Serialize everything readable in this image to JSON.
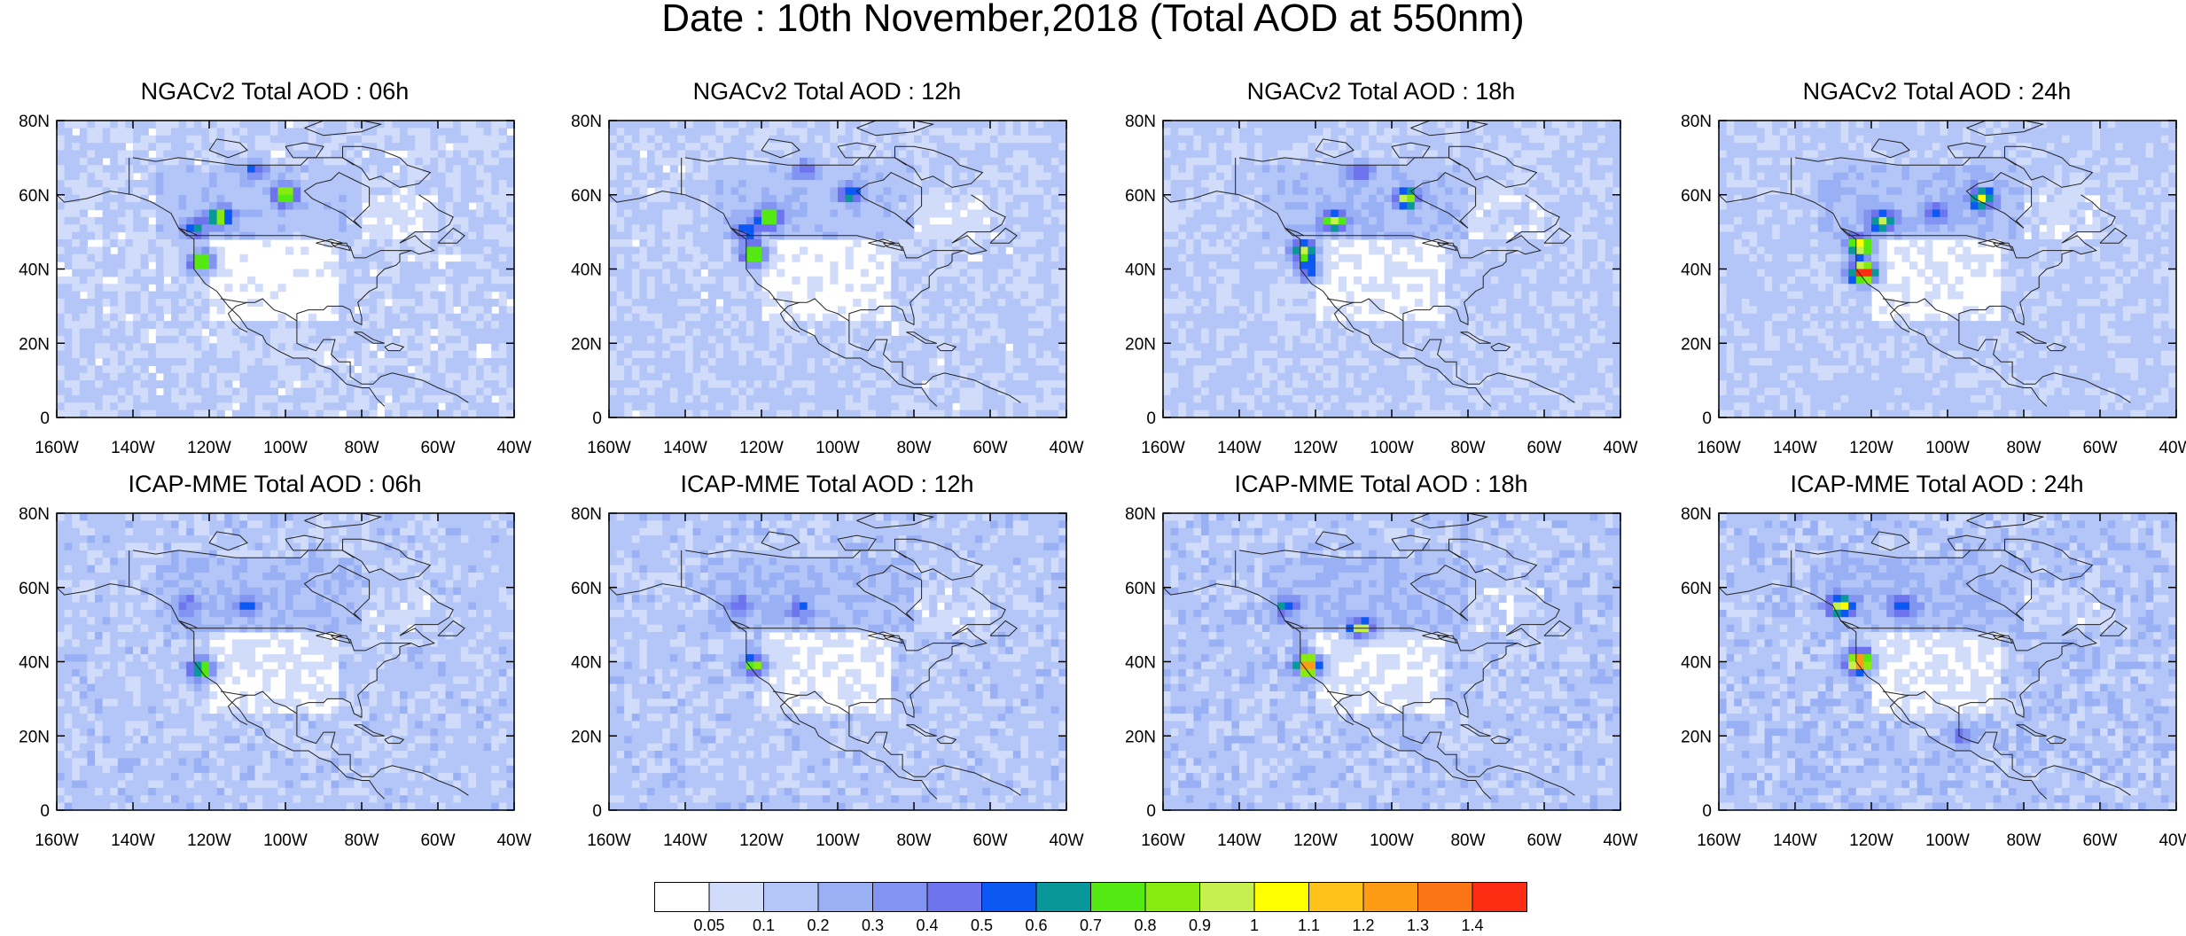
{
  "title": "Date : 10th November,2018 (Total AOD at 550nm)",
  "panels": [
    {
      "title": "NGACv2 Total AOD : 06h",
      "model": "NGACv2",
      "hour": "06h",
      "seed": 11,
      "base": 0.13,
      "hotspots": [
        {
          "lon": -100,
          "lat": 60,
          "v": 0.85
        },
        {
          "lon": -117,
          "lat": 54,
          "v": 0.8
        },
        {
          "lon": -122,
          "lat": 42,
          "v": 0.8
        },
        {
          "lon": -124,
          "lat": 51,
          "v": 0.45
        },
        {
          "lon": -108,
          "lat": 67,
          "v": 0.35
        }
      ]
    },
    {
      "title": "NGACv2 Total AOD : 12h",
      "model": "NGACv2",
      "hour": "12h",
      "seed": 23,
      "base": 0.14,
      "hotspots": [
        {
          "lon": -122,
          "lat": 44,
          "v": 0.85
        },
        {
          "lon": -118,
          "lat": 54,
          "v": 0.8
        },
        {
          "lon": -97,
          "lat": 60,
          "v": 0.5
        },
        {
          "lon": -124,
          "lat": 50,
          "v": 0.5
        },
        {
          "lon": -108,
          "lat": 67,
          "v": 0.35
        }
      ]
    },
    {
      "title": "NGACv2 Total AOD : 18h",
      "model": "NGACv2",
      "hour": "18h",
      "seed": 37,
      "base": 0.15,
      "hotspots": [
        {
          "lon": -123,
          "lat": 45,
          "v": 0.85
        },
        {
          "lon": -96,
          "lat": 59,
          "v": 0.8
        },
        {
          "lon": -115,
          "lat": 53,
          "v": 0.75
        },
        {
          "lon": -122,
          "lat": 40,
          "v": 0.5
        },
        {
          "lon": -108,
          "lat": 66,
          "v": 0.4
        }
      ]
    },
    {
      "title": "NGACv2 Total AOD : 24h",
      "model": "NGACv2",
      "hour": "24h",
      "seed": 41,
      "base": 0.16,
      "hotspots": [
        {
          "lon": -122,
          "lat": 39,
          "v": 1.45
        },
        {
          "lon": -123,
          "lat": 46,
          "v": 1.0
        },
        {
          "lon": -91,
          "lat": 59,
          "v": 0.85
        },
        {
          "lon": -117,
          "lat": 53,
          "v": 0.8
        },
        {
          "lon": -103,
          "lat": 55,
          "v": 0.4
        }
      ]
    },
    {
      "title": "ICAP-MME Total AOD : 06h",
      "model": "ICAP-MME",
      "hour": "06h",
      "seed": 53,
      "base": 0.17,
      "hotspots": [
        {
          "lon": -110,
          "lat": 55,
          "v": 0.35
        },
        {
          "lon": -122,
          "lat": 38,
          "v": 0.75
        },
        {
          "lon": -126,
          "lat": 55,
          "v": 0.3
        }
      ]
    },
    {
      "title": "ICAP-MME Total AOD : 12h",
      "model": "ICAP-MME",
      "hour": "12h",
      "seed": 61,
      "base": 0.17,
      "hotspots": [
        {
          "lon": -122,
          "lat": 39,
          "v": 0.75
        },
        {
          "lon": -110,
          "lat": 54,
          "v": 0.35
        },
        {
          "lon": -126,
          "lat": 55,
          "v": 0.3
        }
      ]
    },
    {
      "title": "ICAP-MME Total AOD : 18h",
      "model": "ICAP-MME",
      "hour": "18h",
      "seed": 71,
      "base": 0.18,
      "hotspots": [
        {
          "lon": -122,
          "lat": 39,
          "v": 1.3
        },
        {
          "lon": -108,
          "lat": 49,
          "v": 0.75
        },
        {
          "lon": -128,
          "lat": 55,
          "v": 0.4
        }
      ]
    },
    {
      "title": "ICAP-MME Total AOD : 24h",
      "model": "ICAP-MME",
      "hour": "24h",
      "seed": 83,
      "base": 0.19,
      "hotspots": [
        {
          "lon": -123,
          "lat": 40,
          "v": 1.2
        },
        {
          "lon": -128,
          "lat": 55,
          "v": 0.8
        },
        {
          "lon": -112,
          "lat": 55,
          "v": 0.45
        },
        {
          "lon": -96,
          "lat": 20,
          "v": 0.35
        }
      ]
    }
  ],
  "axes": {
    "lon_range": [
      -160,
      -40
    ],
    "lat_range": [
      0,
      80
    ],
    "lon_ticks": [
      "160W",
      "140W",
      "120W",
      "100W",
      "80W",
      "60W",
      "40W"
    ],
    "lat_ticks": [
      "0",
      "20N",
      "40N",
      "60N",
      "80N"
    ]
  },
  "colorbar": {
    "labels": [
      "0.05",
      "0.1",
      "0.2",
      "0.3",
      "0.4",
      "0.5",
      "0.6",
      "0.7",
      "0.8",
      "0.9",
      "1",
      "1.1",
      "1.2",
      "1.3",
      "1.4"
    ],
    "colors": [
      "#ffffff",
      "#d0dcfa",
      "#b4c6f8",
      "#9ab0f5",
      "#8294f1",
      "#6e74ee",
      "#0b58f2",
      "#09979a",
      "#54e912",
      "#87ea10",
      "#c6f050",
      "#fefe00",
      "#fdc11a",
      "#fd9b15",
      "#fb7415",
      "#fc2d13"
    ]
  }
}
